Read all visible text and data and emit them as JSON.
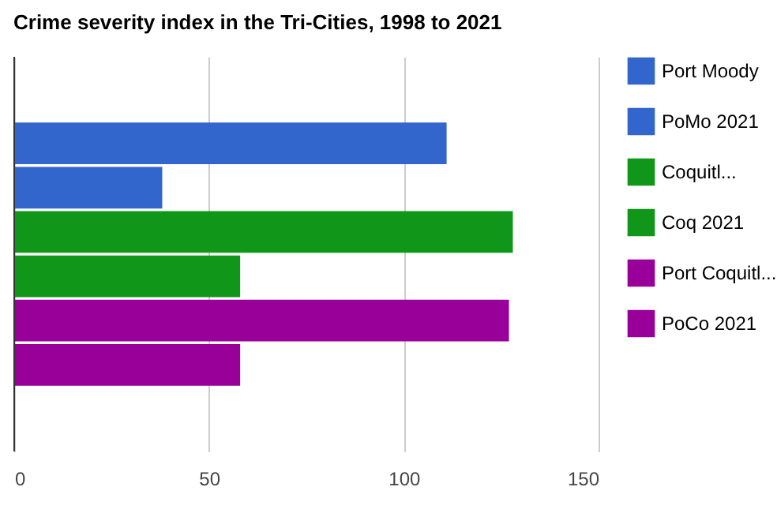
{
  "chart_data": {
    "type": "bar",
    "orientation": "horizontal",
    "title": "Crime severity index in the Tri-Cities, 1998 to 2021",
    "categories": [
      null
    ],
    "series": [
      {
        "name": "Port Moody",
        "color": "#3366cc",
        "values": [
          111
        ]
      },
      {
        "name": "PoMo 2021",
        "color": "#3366cc",
        "values": [
          38
        ]
      },
      {
        "name": "Coquitl...",
        "color": "#109618",
        "values": [
          128
        ]
      },
      {
        "name": "Coq 2021",
        "color": "#109618",
        "values": [
          58
        ]
      },
      {
        "name": "Port Coquitl...",
        "color": "#990099",
        "values": [
          127
        ]
      },
      {
        "name": "PoCo 2021",
        "color": "#990099",
        "values": [
          58
        ]
      }
    ],
    "xlim": [
      0,
      150
    ],
    "xticks": [
      0,
      50,
      100,
      150
    ],
    "grid": true,
    "legend": "right"
  }
}
